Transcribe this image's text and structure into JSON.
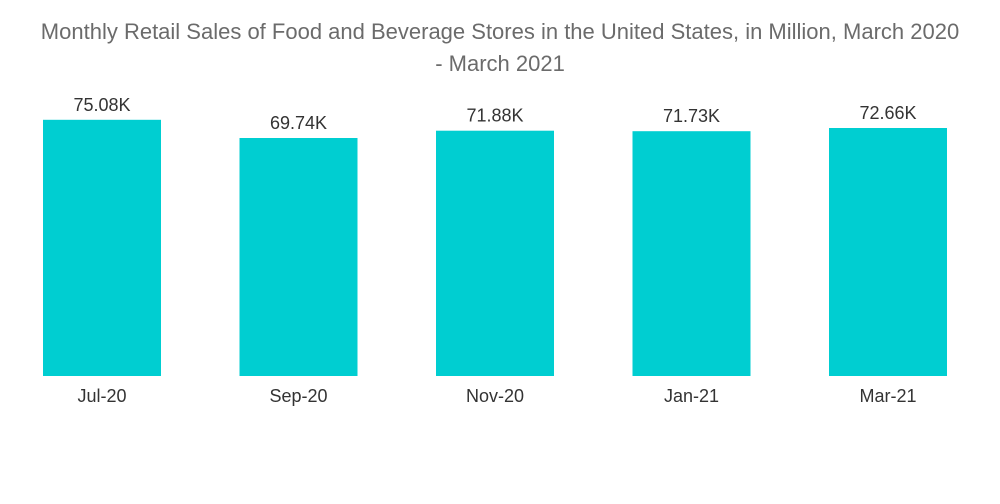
{
  "chart_data": {
    "type": "bar",
    "title_line1": "Monthly Retail Sales of Food and Beverage Stores in the United States, in Million, March 2020",
    "title_line2": "- March 2021",
    "categories": [
      "Jul-20",
      "Sep-20",
      "Nov-20",
      "Jan-21",
      "Mar-21"
    ],
    "values": [
      75.08,
      69.74,
      71.88,
      71.73,
      72.66
    ],
    "value_labels": [
      "75.08K",
      "69.74K",
      "71.88K",
      "71.73K",
      "72.66K"
    ],
    "unit": "K",
    "xlabel": "",
    "ylabel": "",
    "ylim": [
      0,
      80
    ],
    "grid": false,
    "legend": "none",
    "bar_color": "#00ced1"
  }
}
